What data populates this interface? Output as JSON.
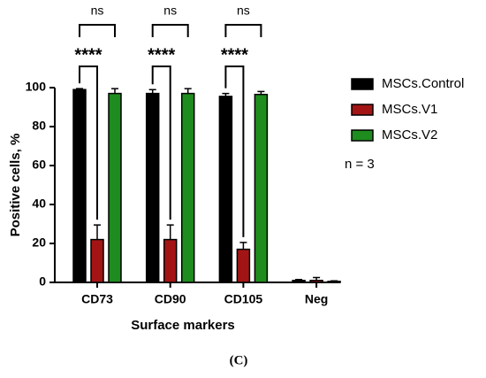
{
  "chart_data": {
    "type": "bar",
    "categories": [
      "CD73",
      "CD90",
      "CD105",
      "Neg"
    ],
    "series": [
      {
        "name": "MSCs.Control",
        "color": "#000000",
        "values": [
          99,
          97,
          95.5,
          1
        ],
        "errors": [
          0.5,
          2,
          1.5,
          0.5
        ]
      },
      {
        "name": "MSCs.V1",
        "color": "#a31515",
        "values": [
          22,
          22,
          17,
          1
        ],
        "errors": [
          7.5,
          7.5,
          3.5,
          1.5
        ]
      },
      {
        "name": "MSCs.V2",
        "color": "#1e8c1e",
        "values": [
          97,
          97,
          96.5,
          0.5
        ],
        "errors": [
          2.5,
          2.5,
          1.5,
          0.3
        ]
      }
    ],
    "ylim": [
      0,
      100
    ],
    "yticks": [
      0,
      20,
      40,
      60,
      80,
      100
    ],
    "x_label": "Surface markers",
    "y_label": "Positive cells, %",
    "significance": {
      "vs_v1": [
        "****",
        "****",
        "****"
      ],
      "vs_v2": [
        "ns",
        "ns",
        "ns"
      ]
    },
    "note": "n = 3",
    "panel_label": "(C)"
  }
}
